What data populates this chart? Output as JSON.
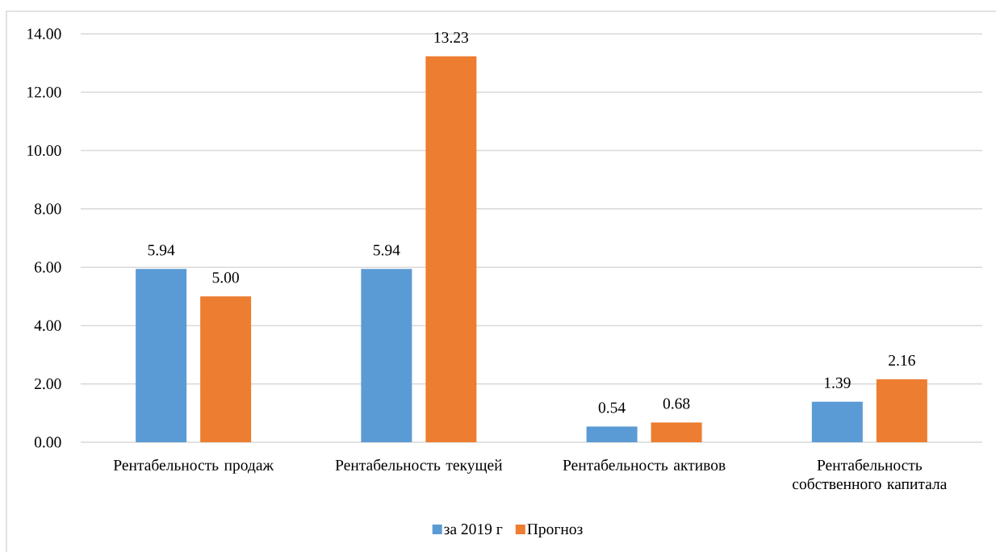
{
  "chart_data": {
    "type": "bar",
    "categories": [
      "Рентабельность продаж",
      "Рентабельность текущей",
      "Рентабельность активов",
      "Рентабельность собственного капитала"
    ],
    "series": [
      {
        "name": "за 2019 г",
        "color": "#5b9bd5",
        "values": [
          5.94,
          5.94,
          0.54,
          1.39
        ],
        "value_labels": [
          "5.94",
          "5.94",
          "0.54",
          "1.39"
        ]
      },
      {
        "name": "Прогноз",
        "color": "#ed7d31",
        "values": [
          5.0,
          13.23,
          0.68,
          2.16
        ],
        "value_labels": [
          "5.00",
          "13.23",
          "0.68",
          "2.16"
        ]
      }
    ],
    "ylim": [
      0,
      14
    ],
    "yticks": [
      {
        "value": 0,
        "label": "0.00"
      },
      {
        "value": 2,
        "label": "2.00"
      },
      {
        "value": 4,
        "label": "4.00"
      },
      {
        "value": 6,
        "label": "6.00"
      },
      {
        "value": 8,
        "label": "8.00"
      },
      {
        "value": 10,
        "label": "10.00"
      },
      {
        "value": 12,
        "label": "12.00"
      },
      {
        "value": 14,
        "label": "14.00"
      }
    ],
    "grid": "y",
    "legend": "bottom"
  }
}
